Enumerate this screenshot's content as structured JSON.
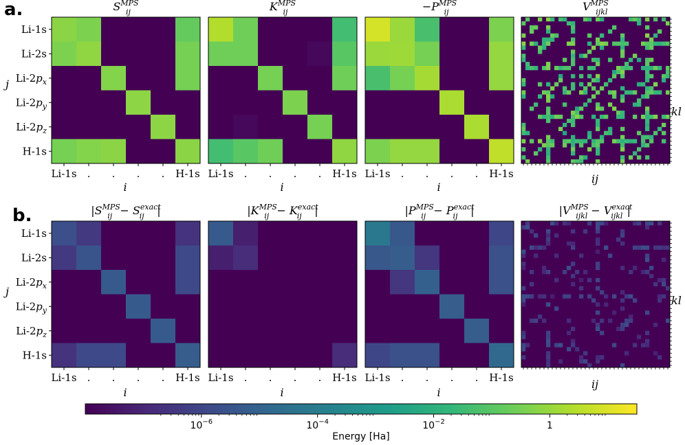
{
  "panels": {
    "a": {
      "label": "a."
    },
    "b": {
      "label": "b."
    }
  },
  "row_labels": [
    "Li-1s",
    "Li-2s",
    "Li-2p_x",
    "Li-2p_y",
    "Li-2p_z",
    "H-1s"
  ],
  "x_tick_labels": [
    "Li-1s",
    ".",
    ".",
    ".",
    ".",
    "H-1s"
  ],
  "axis_labels": {
    "i": "i",
    "j": "j",
    "ij": "ij",
    "kl": "kl"
  },
  "colorbar": {
    "label": "Energy [Ha]",
    "scale": "log",
    "range_log10": [
      -8,
      1.5
    ],
    "ticks": [
      {
        "log10": -6,
        "base": "10",
        "exp": "−6"
      },
      {
        "log10": -4,
        "base": "10",
        "exp": "−4"
      },
      {
        "log10": -2,
        "base": "10",
        "exp": "−2"
      },
      {
        "log10": 0,
        "base": "1",
        "exp": ""
      }
    ]
  },
  "colors": {
    "viridis": [
      "#440154",
      "#482878",
      "#3e4989",
      "#31688e",
      "#26828e",
      "#1f9e89",
      "#35b779",
      "#6ece58",
      "#b5de2b",
      "#fde725"
    ]
  },
  "chart_data": [
    {
      "id": "S_mps",
      "type": "heatmap",
      "row": "a",
      "title": {
        "prefix": "",
        "sym": "S",
        "sub": "ij",
        "sup": "MPS",
        "suffix": ""
      },
      "values_log10": [
        [
          -0.2,
          -0.4,
          -8,
          -8,
          -8,
          -0.8
        ],
        [
          -0.4,
          -0.1,
          -8,
          -8,
          -8,
          -0.5
        ],
        [
          -8,
          -8,
          -0.3,
          -8,
          -8,
          -0.5
        ],
        [
          -8,
          -8,
          -8,
          -0.15,
          -8,
          -8
        ],
        [
          -8,
          -8,
          -8,
          -8,
          -0.15,
          -8
        ],
        [
          -0.5,
          -0.3,
          -0.2,
          -8,
          -8,
          -0.2
        ]
      ]
    },
    {
      "id": "K_mps",
      "type": "heatmap",
      "row": "a",
      "title": {
        "prefix": "",
        "sym": "K",
        "sub": "ij",
        "sup": "MPS",
        "suffix": ""
      },
      "values_log10": [
        [
          0.4,
          -0.6,
          -8,
          -8,
          -8,
          -1.4
        ],
        [
          -0.6,
          -0.6,
          -8,
          -8,
          -7.8,
          -1.0
        ],
        [
          -8,
          -8,
          -0.5,
          -8,
          -8,
          -0.6
        ],
        [
          -8,
          -8,
          -8,
          -0.4,
          -8,
          -8
        ],
        [
          -8,
          -7.8,
          -8,
          -8,
          -0.5,
          -8
        ],
        [
          -1.4,
          -1.0,
          -0.6,
          -8,
          -8,
          -0.1
        ]
      ]
    },
    {
      "id": "P_mps",
      "type": "heatmap",
      "row": "a",
      "title": {
        "prefix": "−",
        "sym": "P",
        "sub": "ij",
        "sup": "MPS",
        "suffix": ""
      },
      "values_log10": [
        [
          0.9,
          0.05,
          -1.3,
          -8,
          -8,
          -0.4
        ],
        [
          0.05,
          0.1,
          -0.5,
          -8,
          -8,
          -0.05
        ],
        [
          -1.3,
          -0.5,
          0.2,
          -8,
          -8,
          -0.05
        ],
        [
          -8,
          -8,
          -8,
          0.3,
          -8,
          -8
        ],
        [
          -8,
          -8,
          -8,
          -8,
          0.3,
          -8
        ],
        [
          -0.4,
          -0.05,
          -0.05,
          -8,
          -8,
          0.6
        ]
      ]
    },
    {
      "id": "V_mps",
      "type": "heatmap",
      "row": "a",
      "title": {
        "prefix": "",
        "sym": "V",
        "sub": "ijkl",
        "sup": "MPS",
        "suffix": ""
      },
      "grid_size": 36,
      "seed": 7,
      "pattern": "sparse_symmetric"
    },
    {
      "id": "S_err",
      "type": "heatmap",
      "row": "b",
      "title": {
        "prefix": "|",
        "sym": "S",
        "sub": "ij",
        "sup": "MPS",
        "suffix": " − S",
        "sym2_sub": "ij",
        "sym2_sup": "exact",
        "close": "|"
      },
      "values_log10": [
        [
          -5.7,
          -6.4,
          -8,
          -8,
          -8,
          -6.6
        ],
        [
          -6.4,
          -5.5,
          -8,
          -8,
          -8,
          -5.9
        ],
        [
          -8,
          -8,
          -5.3,
          -8,
          -8,
          -5.9
        ],
        [
          -8,
          -8,
          -8,
          -5.3,
          -8,
          -8
        ],
        [
          -8,
          -8,
          -8,
          -8,
          -5.3,
          -8
        ],
        [
          -6.6,
          -5.9,
          -5.9,
          -8,
          -8,
          -5.2
        ]
      ]
    },
    {
      "id": "K_err",
      "type": "heatmap",
      "row": "b",
      "title": {
        "prefix": "|",
        "sym": "K",
        "sub": "ij",
        "sup": "MPS",
        "suffix": " − K",
        "sym2_sub": "ij",
        "sym2_sup": "exact",
        "close": "|"
      },
      "values_log10": [
        [
          -5.3,
          -7.2,
          -8,
          -8,
          -8,
          -8
        ],
        [
          -7.2,
          -6.8,
          -8,
          -8,
          -8,
          -8
        ],
        [
          -8,
          -8,
          -8,
          -8,
          -8,
          -8
        ],
        [
          -8,
          -8,
          -8,
          -8,
          -8,
          -8
        ],
        [
          -8,
          -8,
          -8,
          -8,
          -8,
          -8
        ],
        [
          -8,
          -8,
          -8,
          -8,
          -8,
          -6.8
        ]
      ]
    },
    {
      "id": "P_err",
      "type": "heatmap",
      "row": "b",
      "title": {
        "prefix": "|",
        "sym": "P",
        "sub": "ij",
        "sup": "MPS",
        "suffix": " − P",
        "sym2_sub": "ij",
        "sym2_sup": "exact",
        "close": "|"
      },
      "values_log10": [
        [
          -4.2,
          -5.4,
          -8,
          -8,
          -8,
          -6.0
        ],
        [
          -5.4,
          -5.2,
          -6.5,
          -8,
          -8,
          -5.6
        ],
        [
          -8,
          -6.5,
          -5.1,
          -8,
          -8,
          -5.6
        ],
        [
          -8,
          -8,
          -8,
          -5.2,
          -8,
          -8
        ],
        [
          -8,
          -8,
          -8,
          -8,
          -5.2,
          -8
        ],
        [
          -6.0,
          -5.6,
          -5.6,
          -8,
          -8,
          -4.8
        ]
      ]
    },
    {
      "id": "V_err",
      "type": "heatmap",
      "row": "b",
      "title": {
        "prefix": "|",
        "sym": "V",
        "sub": "ijkl",
        "sup": "MPS",
        "suffix": " − V",
        "sym2_sub": "ijkl",
        "sym2_sup": "exact",
        "close": "|"
      },
      "grid_size": 36,
      "seed": 7,
      "pattern": "sparse_error"
    }
  ]
}
